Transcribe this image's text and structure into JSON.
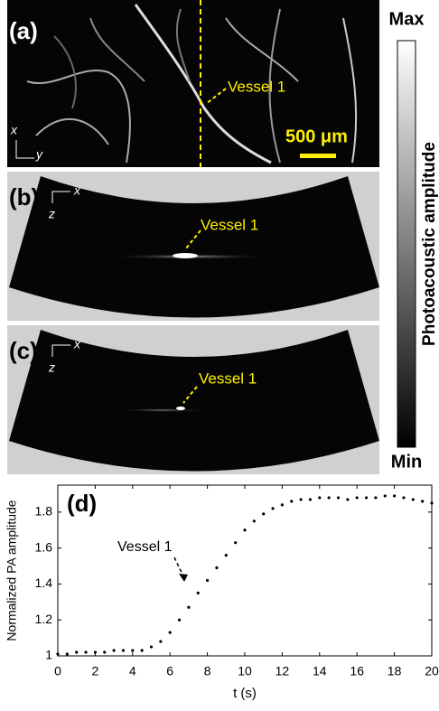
{
  "panels": {
    "a": {
      "label": "(a)",
      "annotation": "Vessel 1",
      "scale_bar": "500 μm",
      "axis_x": "x",
      "axis_y": "y"
    },
    "b": {
      "label": "(b)",
      "annotation": "Vessel 1",
      "axis_x": "x",
      "axis_z": "z"
    },
    "c": {
      "label": "(c)",
      "annotation": "Vessel 1",
      "axis_x": "x",
      "axis_z": "z"
    }
  },
  "colorbar": {
    "max": "Max",
    "min": "Min",
    "label": "Photoacoustic amplitude"
  },
  "chart_data": {
    "type": "scatter",
    "title": "(d)",
    "annotation": "Vessel 1",
    "xlabel": "t (s)",
    "ylabel": "Normalized PA amplitude",
    "color": "#000000",
    "x": [
      0,
      0.5,
      1,
      1.5,
      2,
      2.5,
      3,
      3.5,
      4,
      4.5,
      5,
      5.5,
      6,
      6.5,
      7,
      7.5,
      8,
      8.5,
      9,
      9.5,
      10,
      10.5,
      11,
      11.5,
      12,
      12.5,
      13,
      13.5,
      14,
      14.5,
      15,
      15.5,
      16,
      16.5,
      17,
      17.5,
      18,
      18.5,
      19,
      19.5,
      20
    ],
    "values": [
      1.01,
      1.01,
      1.02,
      1.02,
      1.02,
      1.02,
      1.03,
      1.03,
      1.03,
      1.03,
      1.05,
      1.08,
      1.13,
      1.2,
      1.27,
      1.35,
      1.42,
      1.49,
      1.56,
      1.63,
      1.7,
      1.75,
      1.79,
      1.82,
      1.84,
      1.86,
      1.87,
      1.87,
      1.88,
      1.88,
      1.88,
      1.87,
      1.88,
      1.88,
      1.88,
      1.89,
      1.89,
      1.88,
      1.87,
      1.86,
      1.85
    ],
    "xlim": [
      0,
      20
    ],
    "ylim": [
      1,
      1.95
    ],
    "xticks": [
      0,
      2,
      4,
      6,
      8,
      10,
      12,
      14,
      16,
      18,
      20
    ],
    "yticks": [
      1,
      1.2,
      1.4,
      1.6,
      1.8
    ]
  }
}
